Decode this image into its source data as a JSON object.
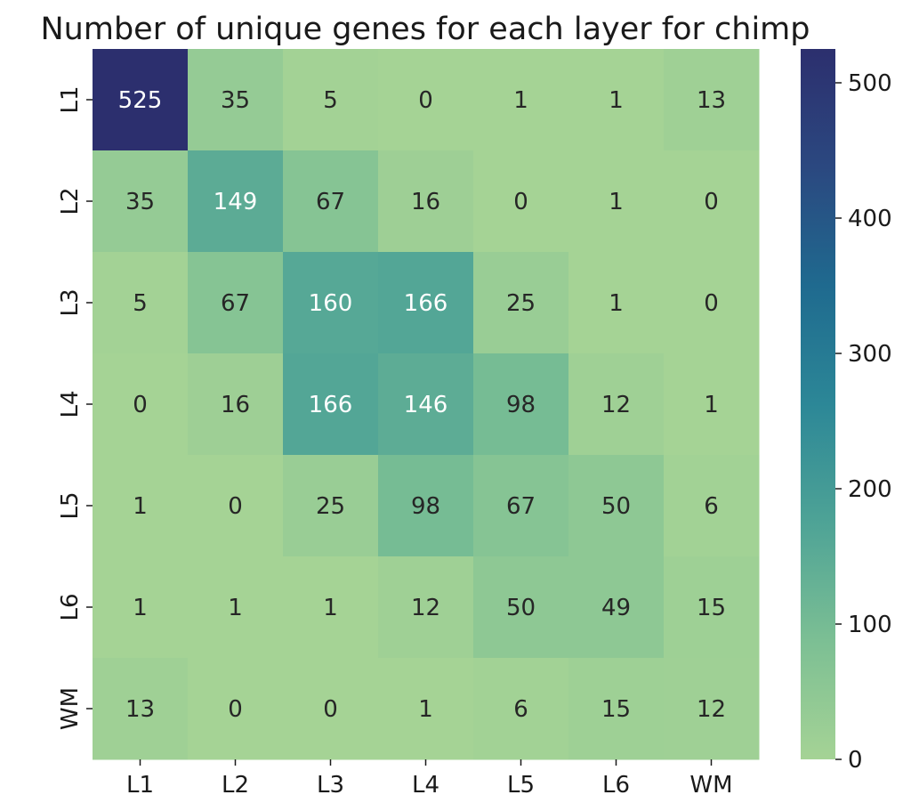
{
  "chart_data": {
    "type": "heatmap",
    "title": "Number of unique genes for each layer for chimp",
    "xlabel": "",
    "ylabel": "",
    "x_categories": [
      "L1",
      "L2",
      "L3",
      "L4",
      "L5",
      "L6",
      "WM"
    ],
    "y_categories": [
      "L1",
      "L2",
      "L3",
      "L4",
      "L5",
      "L6",
      "WM"
    ],
    "values": [
      [
        525,
        35,
        5,
        0,
        1,
        1,
        13
      ],
      [
        35,
        149,
        67,
        16,
        0,
        1,
        0
      ],
      [
        5,
        67,
        160,
        166,
        25,
        1,
        0
      ],
      [
        0,
        16,
        166,
        146,
        98,
        12,
        1
      ],
      [
        1,
        0,
        25,
        98,
        67,
        50,
        6
      ],
      [
        1,
        1,
        1,
        12,
        50,
        49,
        15
      ],
      [
        13,
        0,
        0,
        1,
        6,
        15,
        12
      ]
    ],
    "colorbar": {
      "min": 0,
      "max": 525,
      "ticks": [
        "0",
        "100",
        "200",
        "300",
        "400",
        "500"
      ],
      "colormap": "crest",
      "stops": [
        "#a5d395",
        "#7cbf94",
        "#4ea396",
        "#2c8797",
        "#1f6a8f",
        "#2b4880",
        "#2c2f6e"
      ]
    },
    "grid": false,
    "annotated": true
  }
}
